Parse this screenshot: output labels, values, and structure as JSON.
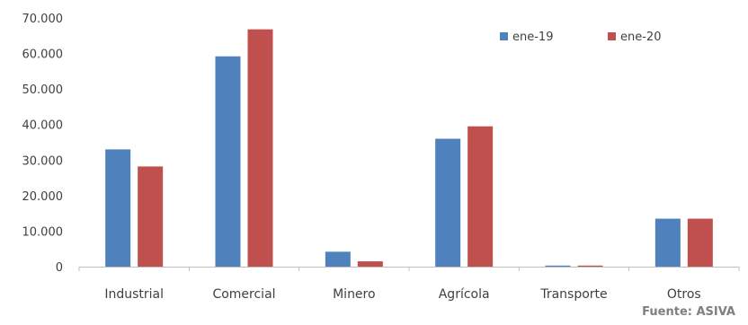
{
  "chart_data": {
    "type": "bar",
    "categories": [
      "Industrial",
      "Comercial",
      "Minero",
      "Agrícola",
      "Transporte",
      "Otros"
    ],
    "series": [
      {
        "name": "ene-19",
        "color": "#4f81bd",
        "values": [
          33000,
          59200,
          4200,
          36000,
          300,
          13500
        ]
      },
      {
        "name": "ene-20",
        "color": "#c0504d",
        "values": [
          28200,
          66800,
          1500,
          39500,
          300,
          13500
        ]
      }
    ],
    "yticks": [
      "0",
      "10.000",
      "20.000",
      "30.000",
      "40.000",
      "50.000",
      "60.000",
      "70.000"
    ],
    "ylim": [
      0,
      70000
    ],
    "grid": false,
    "legend": "top-right"
  },
  "source_label": "Fuente: ASIVA"
}
